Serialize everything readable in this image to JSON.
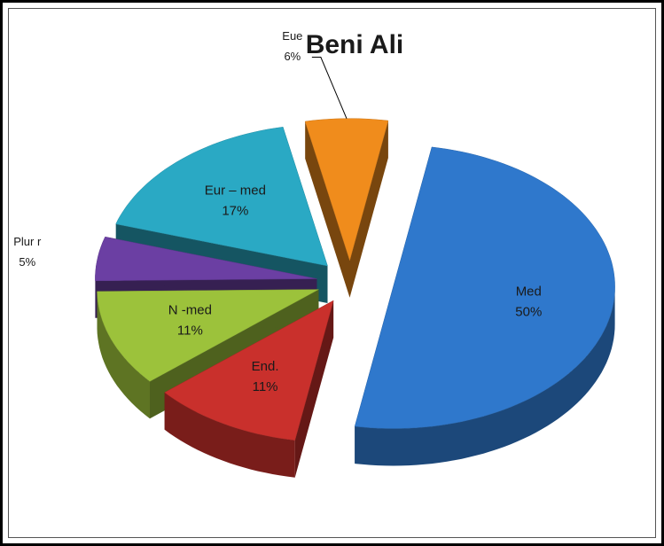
{
  "chart_data": {
    "type": "pie3d",
    "title": "Beni Ali",
    "categories": [
      "Med",
      "End.",
      "N -med",
      "Plur r",
      "Eur – med",
      "Eue"
    ],
    "values": [
      50,
      11,
      11,
      5,
      17,
      6
    ],
    "value_labels": [
      "50%",
      "11%",
      "11%",
      "5%",
      "17%",
      "6%"
    ],
    "colors": [
      "#2f78cc",
      "#c9302c",
      "#9cc23b",
      "#6b3fa3",
      "#2aa9c4",
      "#f08c1c"
    ]
  }
}
